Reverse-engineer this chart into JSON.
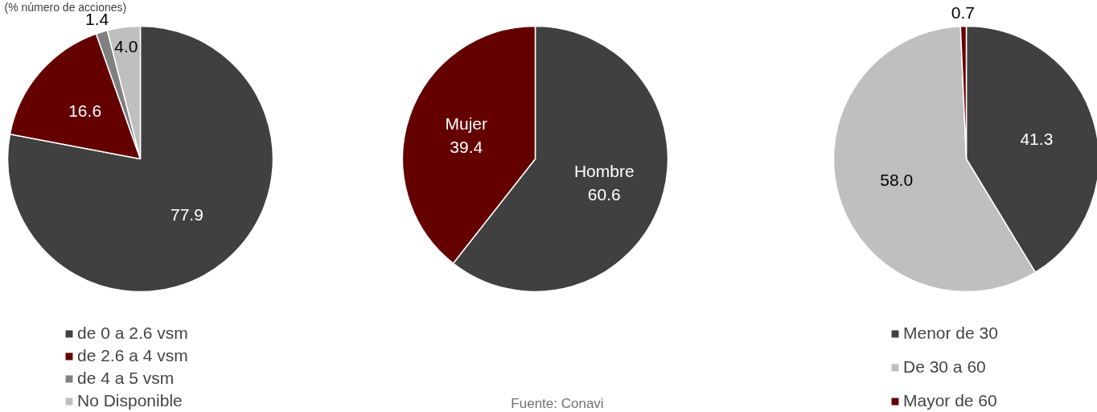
{
  "chart_data": [
    {
      "type": "pie",
      "subtitle": "(% número de acciones)",
      "categories": [
        "de 0 a 2.6 vsm",
        "de 2.6 a 4 vsm",
        "de 4 a 5 vsm",
        "No Disponible"
      ],
      "values": [
        77.9,
        16.6,
        1.4,
        4.0
      ],
      "value_labels": [
        "77.9",
        "16.6",
        "1.4",
        "4.0"
      ],
      "colors": [
        "#404040",
        "#640000",
        "#808080",
        "#bfbfbf"
      ],
      "legend": "bottom"
    },
    {
      "type": "pie",
      "categories": [
        "Hombre",
        "Mujer"
      ],
      "values": [
        60.6,
        39.4
      ],
      "value_labels": [
        "60.6",
        "39.4"
      ],
      "colors": [
        "#404040",
        "#640000"
      ],
      "legend": false,
      "annotations": [
        "Fuente: Conavi"
      ]
    },
    {
      "type": "pie",
      "categories": [
        "Menor de 30",
        "De 30 a 60",
        "Mayor de 60"
      ],
      "values": [
        41.3,
        58.0,
        0.7
      ],
      "value_labels": [
        "41.3",
        "58.0",
        "0.7"
      ],
      "colors": [
        "#404040",
        "#bfbfbf",
        "#640000"
      ],
      "legend": "bottom"
    }
  ]
}
